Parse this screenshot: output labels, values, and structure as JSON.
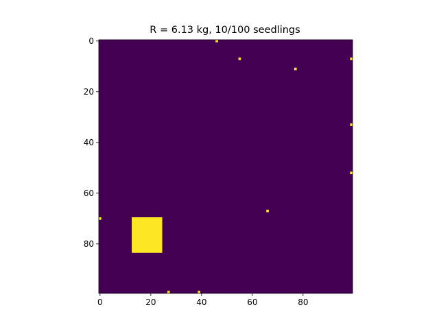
{
  "chart_data": {
    "type": "heatmap",
    "title": "R = 6.13 kg, 10/100 seedlings",
    "grid_size": 100,
    "xlim": [
      0,
      99
    ],
    "ylim": [
      99,
      0
    ],
    "x_ticks": [
      0,
      20,
      40,
      60,
      80
    ],
    "y_ticks": [
      0,
      20,
      40,
      60,
      80
    ],
    "grid": false,
    "colormap": "viridis",
    "colors": {
      "empty": "#440154",
      "occupied": "#fde725"
    },
    "cells": [
      {
        "row": 0,
        "col": 46
      },
      {
        "row": 7,
        "col": 55
      },
      {
        "row": 11,
        "col": 77
      },
      {
        "row": 7,
        "col": 99
      },
      {
        "row": 33,
        "col": 99
      },
      {
        "row": 52,
        "col": 99
      },
      {
        "row": 67,
        "col": 66
      },
      {
        "row": 70,
        "col": 0
      },
      {
        "row": 99,
        "col": 27
      },
      {
        "row": 99,
        "col": 39
      }
    ],
    "blocks": [
      {
        "row_start": 70,
        "row_end": 83,
        "col_start": 13,
        "col_end": 24
      }
    ]
  }
}
